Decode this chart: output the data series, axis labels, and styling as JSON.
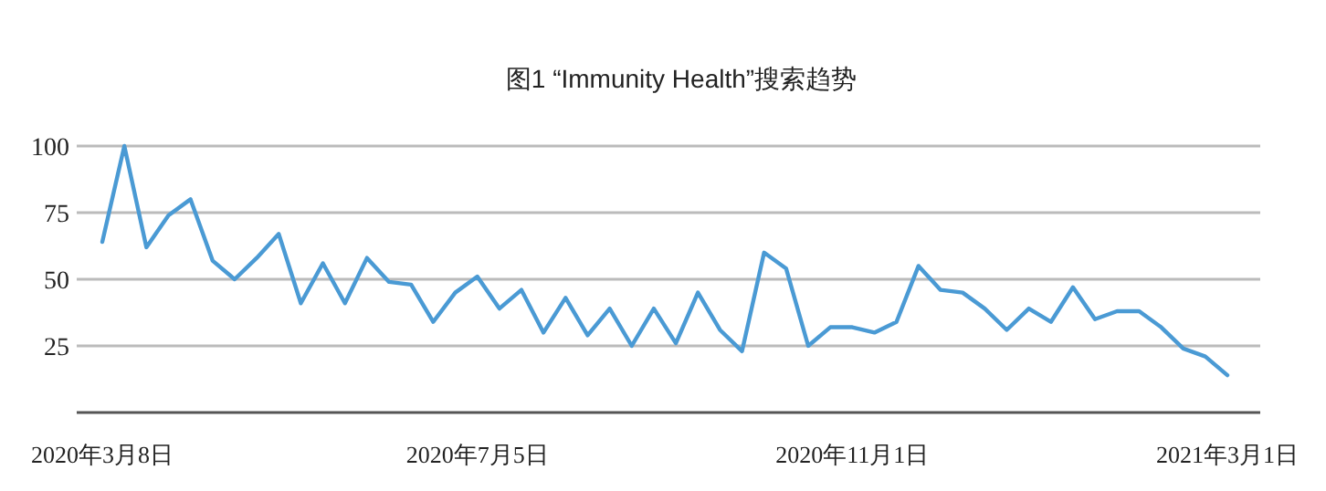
{
  "chart_data": {
    "type": "line",
    "title": "图1 “Immunity Health”搜索趋势",
    "categories": [
      "2020年3月8日",
      null,
      null,
      null,
      null,
      null,
      null,
      null,
      null,
      null,
      null,
      null,
      null,
      null,
      null,
      null,
      null,
      "2020年7月5日",
      null,
      null,
      null,
      null,
      null,
      null,
      null,
      null,
      null,
      null,
      null,
      null,
      null,
      null,
      null,
      null,
      "2020年11月1日",
      null,
      null,
      null,
      null,
      null,
      null,
      null,
      null,
      null,
      null,
      null,
      null,
      null,
      null,
      null,
      null,
      "2021年3月1日"
    ],
    "series": [
      {
        "color": "#4a9ad4",
        "values": [
          64,
          100,
          62,
          74,
          80,
          57,
          50,
          58,
          67,
          41,
          56,
          41,
          58,
          49,
          48,
          34,
          45,
          51,
          39,
          46,
          30,
          43,
          29,
          39,
          25,
          39,
          26,
          45,
          31,
          23,
          60,
          54,
          25,
          32,
          32,
          30,
          34,
          55,
          46,
          45,
          39,
          31,
          39,
          34,
          47,
          35,
          38,
          38,
          32,
          24,
          21,
          14
        ]
      }
    ],
    "ylim": [
      0,
      100
    ],
    "yticks": [
      {
        "value": 0,
        "label": null
      },
      25,
      50,
      75,
      100
    ],
    "grid": "y",
    "marker": "none",
    "line_style": "solid"
  }
}
